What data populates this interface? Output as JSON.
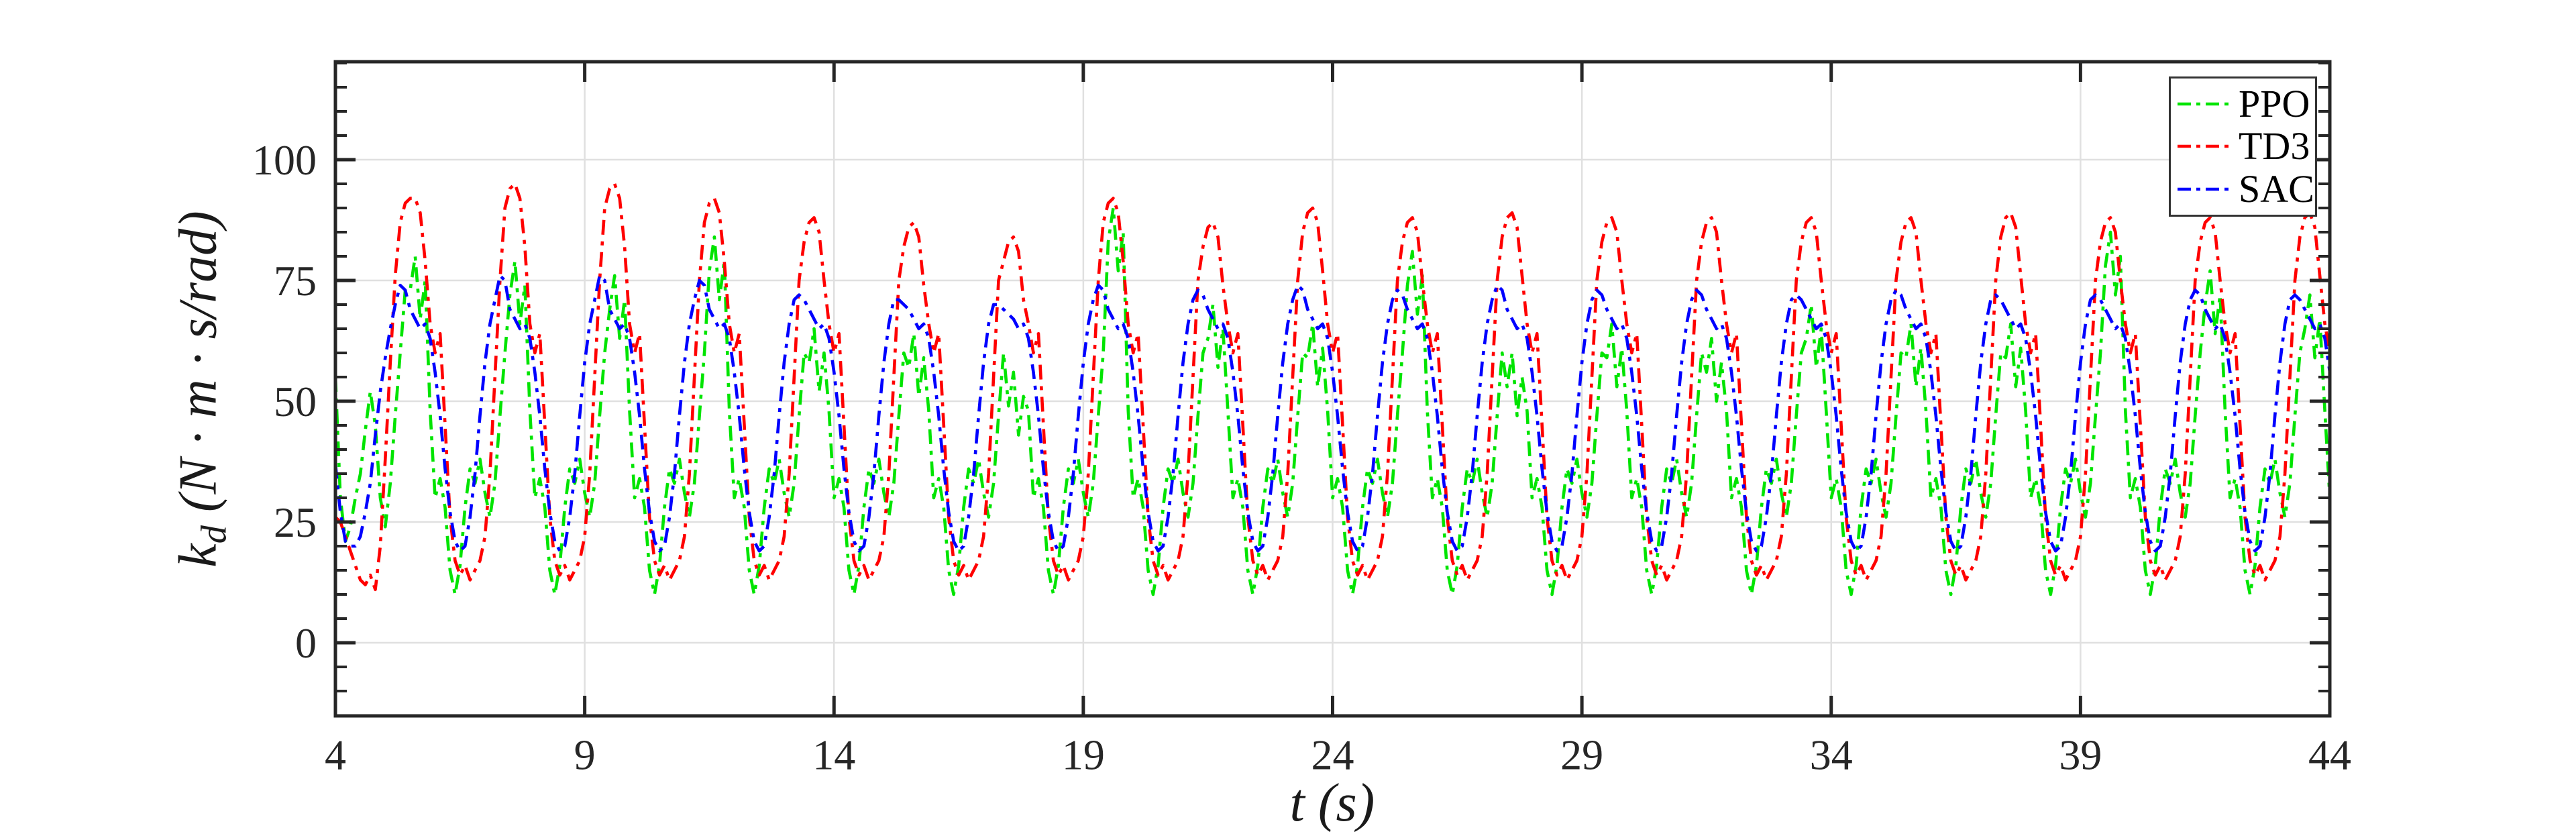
{
  "figure": {
    "background": "#ffffff",
    "axes_color": "#262626",
    "grid_color": "#e0e0e0"
  },
  "labels": {
    "xlabel_var": "t",
    "xlabel_units": "(s)",
    "ylabel_main": "k",
    "ylabel_sub": "d",
    "ylabel_units": "(N · m · s/rad)"
  },
  "legend": {
    "position": "northeast",
    "entries": [
      {
        "label": "PPO",
        "color": "#00e400",
        "linestyle": "dash-dot"
      },
      {
        "label": "TD3",
        "color": "#ff0000",
        "linestyle": "dash-dot"
      },
      {
        "label": "SAC",
        "color": "#0000ff",
        "linestyle": "dash-dot"
      }
    ]
  },
  "chart_data": {
    "type": "line",
    "title": "",
    "xlabel": "t (s)",
    "ylabel": "k_d (N·m·s/rad)",
    "xlim": [
      4,
      44
    ],
    "ylim": [
      -15.14,
      120.28
    ],
    "xticks": [
      4,
      9,
      14,
      19,
      24,
      29,
      34,
      39,
      44
    ],
    "yticks": [
      0,
      25,
      50,
      75,
      100
    ],
    "yminor_step": 5,
    "grid": true,
    "x_start": 4,
    "x_step": 0.1,
    "series": [
      {
        "name": "PPO",
        "color": "#00e400",
        "linestyle": "dash-dot",
        "values": [
          55,
          30,
          21,
          24,
          30,
          35,
          44,
          52,
          45,
          30,
          24,
          33,
          47,
          60,
          73,
          73,
          80,
          67,
          75,
          48,
          30,
          34,
          28,
          15,
          10,
          16,
          28,
          36,
          33,
          38,
          31,
          26,
          33,
          47,
          60,
          72,
          79,
          66,
          74,
          48,
          30,
          34,
          28,
          15,
          10,
          16,
          28,
          36,
          33,
          38,
          31,
          26,
          33,
          47,
          60,
          69,
          76,
          63,
          71,
          48,
          30,
          34,
          28,
          15,
          10,
          16,
          28,
          36,
          33,
          38,
          31,
          26,
          33,
          47,
          60,
          77,
          84,
          71,
          79,
          48,
          30,
          34,
          28,
          15,
          10,
          16,
          28,
          36,
          33,
          38,
          31,
          26,
          33,
          47,
          60,
          58,
          65,
          52,
          60,
          48,
          30,
          34,
          28,
          15,
          10,
          16,
          28,
          36,
          33,
          38,
          31,
          26,
          33,
          47,
          60,
          57,
          64,
          51,
          59,
          48,
          30,
          34,
          28,
          15,
          10,
          16,
          28,
          36,
          33,
          38,
          31,
          26,
          33,
          47,
          60,
          49,
          56,
          43,
          51,
          48,
          30,
          34,
          28,
          15,
          10,
          16,
          28,
          36,
          33,
          38,
          31,
          26,
          33,
          47,
          60,
          83,
          90,
          77,
          85,
          48,
          30,
          34,
          28,
          15,
          10,
          16,
          28,
          36,
          33,
          38,
          31,
          26,
          33,
          47,
          60,
          63,
          70,
          57,
          65,
          48,
          30,
          34,
          28,
          15,
          10,
          16,
          28,
          36,
          33,
          38,
          31,
          26,
          33,
          47,
          60,
          59,
          66,
          53,
          61,
          48,
          30,
          34,
          28,
          15,
          10,
          16,
          28,
          36,
          33,
          38,
          31,
          26,
          33,
          47,
          60,
          74,
          81,
          68,
          76,
          48,
          30,
          34,
          28,
          15,
          10,
          16,
          28,
          36,
          33,
          38,
          31,
          26,
          33,
          47,
          60,
          53,
          60,
          47,
          55,
          48,
          30,
          34,
          28,
          15,
          10,
          16,
          28,
          36,
          33,
          38,
          31,
          26,
          33,
          47,
          60,
          59,
          66,
          53,
          61,
          48,
          30,
          34,
          28,
          15,
          10,
          16,
          28,
          36,
          33,
          38,
          31,
          26,
          33,
          47,
          60,
          56,
          63,
          50,
          58,
          48,
          30,
          34,
          28,
          15,
          10,
          16,
          28,
          36,
          33,
          38,
          31,
          26,
          33,
          47,
          60,
          63,
          70,
          57,
          65,
          48,
          30,
          34,
          28,
          15,
          10,
          16,
          28,
          36,
          33,
          38,
          31,
          26,
          33,
          47,
          60,
          59,
          66,
          53,
          61,
          48,
          30,
          34,
          28,
          15,
          10,
          16,
          28,
          36,
          33,
          38,
          31,
          26,
          33,
          47,
          60,
          59,
          66,
          53,
          61,
          48,
          30,
          34,
          28,
          15,
          10,
          16,
          28,
          36,
          33,
          38,
          31,
          26,
          33,
          47,
          60,
          78,
          85,
          72,
          80,
          48,
          30,
          34,
          28,
          15,
          10,
          16,
          28,
          36,
          33,
          38,
          31,
          26,
          33,
          47,
          60,
          70,
          77,
          64,
          72,
          48,
          30,
          34,
          28,
          15,
          10,
          16,
          28,
          36,
          33,
          38,
          31,
          26,
          33,
          47,
          60,
          65,
          72,
          59,
          67,
          48,
          30
        ]
      },
      {
        "name": "TD3",
        "color": "#ff0000",
        "linestyle": "dash-dot",
        "values": [
          26,
          25,
          22,
          19,
          16,
          13,
          12,
          14,
          11,
          20,
          38,
          58,
          76,
          87,
          91,
          92,
          92,
          89,
          79,
          66,
          60,
          64,
          45,
          26,
          17,
          14,
          16,
          13,
          15,
          17,
          22,
          35,
          55,
          75,
          90,
          94,
          95,
          92,
          82,
          66,
          60,
          64,
          45,
          26,
          17,
          14,
          16,
          13,
          15,
          17,
          22,
          35,
          55,
          75,
          90,
          94,
          95,
          92,
          82,
          66,
          60,
          64,
          45,
          26,
          17,
          14,
          16,
          13,
          15,
          17,
          22,
          35,
          55,
          75,
          87,
          91,
          92,
          89,
          79,
          66,
          60,
          64,
          45,
          26,
          17,
          14,
          16,
          13,
          15,
          17,
          22,
          35,
          55,
          75,
          83,
          87,
          88,
          85,
          75,
          66,
          60,
          64,
          45,
          26,
          17,
          14,
          16,
          13,
          15,
          17,
          22,
          35,
          55,
          75,
          82,
          86,
          87,
          84,
          74,
          66,
          60,
          64,
          45,
          26,
          17,
          14,
          16,
          13,
          15,
          17,
          22,
          35,
          55,
          75,
          79,
          83,
          84,
          81,
          71,
          66,
          60,
          64,
          45,
          26,
          17,
          14,
          16,
          13,
          15,
          17,
          22,
          35,
          55,
          75,
          87,
          91,
          92,
          89,
          79,
          66,
          60,
          64,
          45,
          26,
          17,
          14,
          16,
          13,
          15,
          17,
          22,
          35,
          55,
          75,
          82,
          86,
          87,
          84,
          74,
          66,
          60,
          64,
          45,
          26,
          17,
          14,
          16,
          13,
          15,
          17,
          22,
          35,
          55,
          75,
          85,
          89,
          90,
          87,
          77,
          66,
          60,
          64,
          45,
          26,
          17,
          14,
          16,
          13,
          15,
          17,
          22,
          35,
          55,
          75,
          83,
          87,
          88,
          85,
          75,
          66,
          60,
          64,
          45,
          26,
          17,
          14,
          16,
          13,
          15,
          17,
          22,
          35,
          55,
          75,
          84,
          88,
          89,
          86,
          76,
          66,
          60,
          64,
          45,
          26,
          17,
          14,
          16,
          13,
          15,
          17,
          22,
          35,
          55,
          75,
          83,
          87,
          88,
          85,
          75,
          66,
          60,
          64,
          45,
          26,
          17,
          14,
          16,
          13,
          15,
          17,
          22,
          35,
          55,
          75,
          83,
          87,
          88,
          85,
          75,
          66,
          60,
          64,
          45,
          26,
          17,
          14,
          16,
          13,
          15,
          17,
          22,
          35,
          55,
          75,
          83,
          87,
          88,
          85,
          75,
          66,
          60,
          64,
          45,
          26,
          17,
          14,
          16,
          13,
          15,
          17,
          22,
          35,
          55,
          75,
          83,
          87,
          88,
          85,
          75,
          66,
          60,
          64,
          45,
          26,
          17,
          14,
          16,
          13,
          15,
          17,
          22,
          35,
          55,
          75,
          84,
          88,
          89,
          86,
          76,
          66,
          60,
          64,
          45,
          26,
          17,
          14,
          16,
          13,
          15,
          17,
          22,
          35,
          55,
          75,
          83,
          87,
          88,
          85,
          75,
          66,
          60,
          64,
          45,
          26,
          17,
          14,
          16,
          13,
          15,
          17,
          22,
          35,
          55,
          75,
          83,
          87,
          88,
          85,
          75,
          66,
          60,
          64,
          45,
          26,
          17,
          14,
          16,
          13,
          15,
          17,
          22,
          35,
          55,
          75,
          84,
          88,
          89,
          86,
          76,
          66,
          60
        ]
      },
      {
        "name": "SAC",
        "color": "#0000ff",
        "linestyle": "dash-dot",
        "values": [
          37,
          27,
          21,
          20,
          20,
          22,
          27,
          33,
          43,
          52,
          59,
          65,
          70,
          74,
          73,
          69,
          67,
          65,
          66,
          63,
          56,
          47,
          36,
          27,
          21,
          19,
          20,
          26,
          35,
          47,
          58,
          66,
          71,
          76,
          75,
          69,
          67,
          65,
          66,
          63,
          56,
          47,
          36,
          27,
          21,
          19,
          20,
          26,
          35,
          47,
          58,
          66,
          71,
          76,
          75,
          69,
          67,
          65,
          66,
          63,
          56,
          47,
          36,
          27,
          21,
          19,
          20,
          26,
          35,
          47,
          58,
          66,
          71,
          75,
          74,
          69,
          67,
          65,
          66,
          63,
          56,
          47,
          36,
          27,
          21,
          19,
          20,
          26,
          35,
          47,
          58,
          66,
          71,
          72,
          71,
          69,
          67,
          65,
          66,
          63,
          56,
          47,
          36,
          27,
          21,
          19,
          20,
          26,
          35,
          47,
          58,
          66,
          71,
          71,
          70,
          69,
          67,
          65,
          66,
          63,
          56,
          47,
          36,
          27,
          21,
          19,
          20,
          26,
          35,
          47,
          58,
          66,
          70,
          70,
          69,
          68,
          67,
          65,
          66,
          63,
          56,
          47,
          36,
          27,
          21,
          19,
          20,
          26,
          35,
          47,
          58,
          66,
          71,
          74,
          73,
          69,
          67,
          65,
          66,
          63,
          56,
          47,
          36,
          27,
          21,
          19,
          20,
          26,
          35,
          47,
          58,
          66,
          71,
          73,
          72,
          69,
          67,
          65,
          66,
          63,
          56,
          47,
          36,
          27,
          21,
          19,
          20,
          26,
          35,
          47,
          58,
          66,
          71,
          74,
          73,
          69,
          67,
          65,
          66,
          63,
          56,
          47,
          36,
          27,
          21,
          19,
          20,
          26,
          35,
          47,
          58,
          66,
          71,
          73,
          72,
          69,
          67,
          65,
          66,
          63,
          56,
          47,
          36,
          27,
          21,
          19,
          20,
          26,
          35,
          47,
          58,
          66,
          71,
          74,
          73,
          69,
          67,
          65,
          66,
          63,
          56,
          47,
          36,
          27,
          21,
          19,
          20,
          26,
          35,
          47,
          58,
          66,
          71,
          73,
          72,
          69,
          67,
          65,
          66,
          63,
          56,
          47,
          36,
          27,
          21,
          19,
          20,
          26,
          35,
          47,
          58,
          66,
          71,
          73,
          72,
          69,
          67,
          65,
          66,
          63,
          56,
          47,
          36,
          27,
          21,
          19,
          20,
          26,
          35,
          47,
          58,
          66,
          71,
          72,
          71,
          69,
          67,
          65,
          66,
          63,
          56,
          47,
          36,
          27,
          21,
          19,
          20,
          26,
          35,
          47,
          58,
          66,
          71,
          73,
          72,
          69,
          67,
          65,
          66,
          63,
          56,
          47,
          36,
          27,
          21,
          19,
          20,
          26,
          35,
          47,
          58,
          66,
          71,
          72,
          71,
          69,
          67,
          65,
          66,
          63,
          56,
          47,
          36,
          27,
          21,
          19,
          20,
          26,
          35,
          47,
          58,
          66,
          71,
          72,
          71,
          69,
          67,
          65,
          66,
          63,
          56,
          47,
          36,
          27,
          21,
          19,
          20,
          26,
          35,
          47,
          58,
          66,
          71,
          73,
          72,
          69,
          67,
          65,
          66,
          63,
          56,
          47,
          36,
          27,
          21,
          19,
          20,
          26,
          35,
          47,
          58,
          66,
          71,
          72,
          71,
          69,
          67,
          65,
          66,
          63,
          56
        ]
      }
    ]
  }
}
